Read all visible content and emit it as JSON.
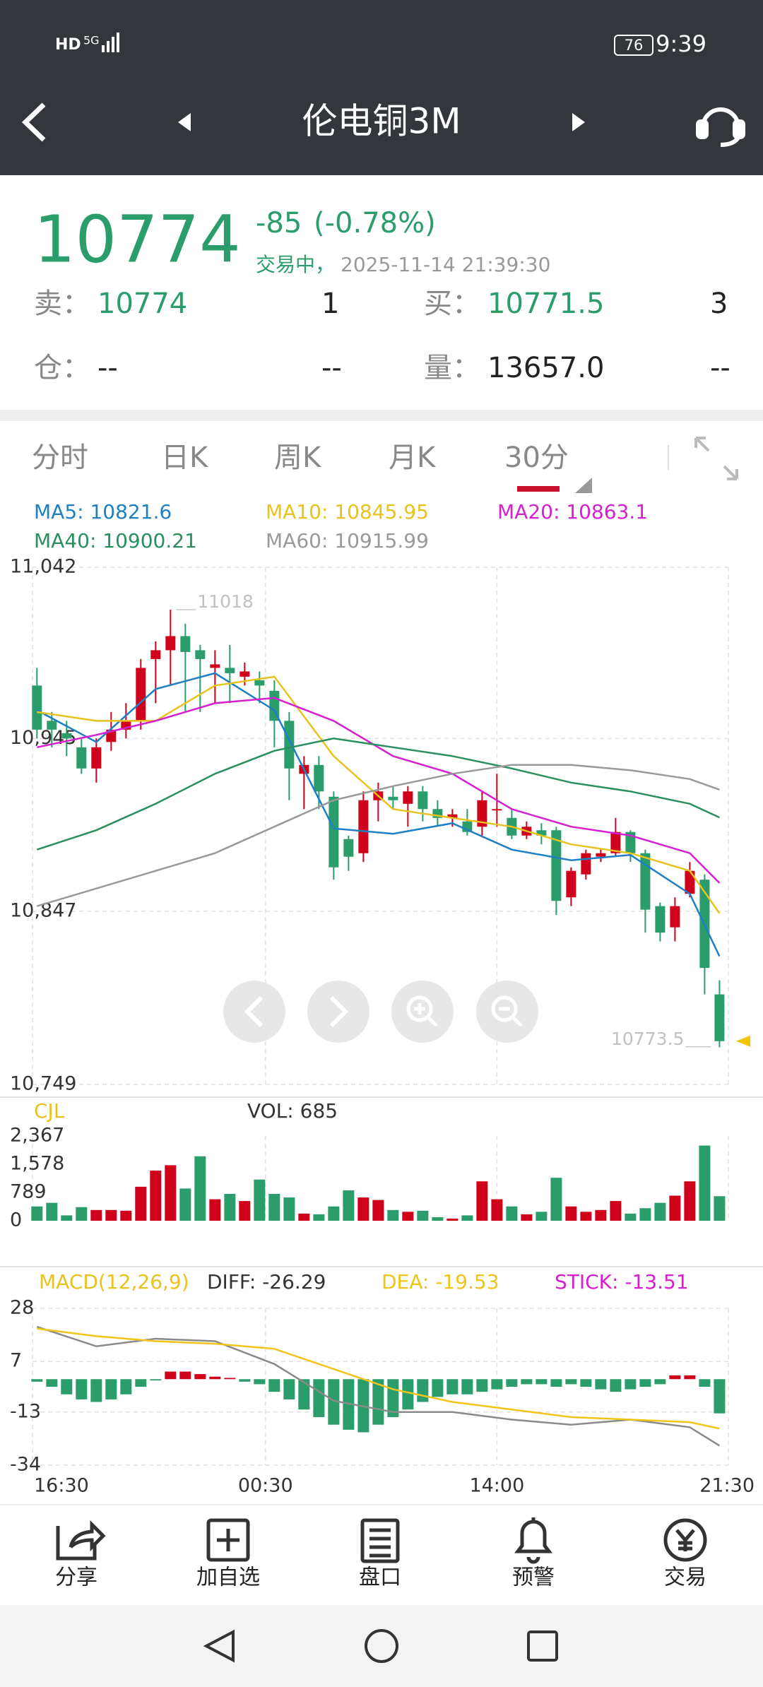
{
  "status_bar": {
    "hd": "HD",
    "network": "5G",
    "battery": "76",
    "time": "9:39"
  },
  "header": {
    "title": "伦电铜3M"
  },
  "quote": {
    "price": "10774",
    "change": "-85",
    "change_pct": "(-0.78%)",
    "status": "交易中，",
    "time": "2025-11-14 21:39:30",
    "rows": [
      [
        "卖：",
        "10774",
        "1",
        "买：",
        "10771.5",
        "3"
      ],
      [
        "仓：",
        "--",
        "--",
        "量：",
        "13657.0",
        "--"
      ]
    ]
  },
  "tabs": [
    "分时",
    "日K",
    "周K",
    "月K",
    "30分"
  ],
  "chart_data": [
    {
      "type": "candlestick",
      "up_color": "#d0021b",
      "down_color": "#2a9d6a",
      "open": [
        10975,
        10955,
        10948,
        10940,
        10928,
        10943,
        10950,
        10955,
        10990,
        10995,
        11003,
        10995,
        10985,
        10985,
        10980,
        10978,
        10972,
        10955,
        10925,
        10930,
        10912,
        10888,
        10880,
        10910,
        10912,
        10908,
        10915,
        10905,
        10900,
        10898,
        10895,
        10905,
        10900,
        10890,
        10893,
        10893,
        10855,
        10868,
        10878,
        10880,
        10892,
        10880,
        10850,
        10838,
        10857,
        10865,
        10800
      ],
      "high": [
        10985,
        10960,
        10955,
        10945,
        10945,
        10960,
        10965,
        10990,
        11000,
        11018,
        11010,
        10998,
        10995,
        10998,
        10988,
        10983,
        10978,
        10960,
        10935,
        10935,
        10915,
        10890,
        10915,
        10920,
        10918,
        10918,
        10918,
        10910,
        10905,
        10905,
        10915,
        10925,
        10905,
        10898,
        10897,
        10895,
        10872,
        10882,
        10882,
        10900,
        10893,
        10882,
        10852,
        10855,
        10875,
        10868,
        10808
      ],
      "low": [
        10945,
        10940,
        10935,
        10925,
        10920,
        10938,
        10945,
        10950,
        10965,
        10975,
        10960,
        10960,
        10965,
        10965,
        10975,
        10965,
        10940,
        10910,
        10905,
        10905,
        10865,
        10870,
        10875,
        10898,
        10905,
        10895,
        10898,
        10895,
        10895,
        10890,
        10890,
        10895,
        10888,
        10888,
        10885,
        10845,
        10850,
        10865,
        10875,
        10878,
        10875,
        10835,
        10830,
        10830,
        10855,
        10800,
        10770
      ],
      "close": [
        10950,
        10950,
        10945,
        10928,
        10940,
        10950,
        10955,
        10985,
        10995,
        11003,
        10994,
        10990,
        10987,
        10982,
        10983,
        10975,
        10955,
        10928,
        10930,
        10915,
        10872,
        10878,
        10910,
        10915,
        10910,
        10915,
        10905,
        10900,
        10902,
        10892,
        10910,
        10905,
        10890,
        10895,
        10890,
        10853,
        10870,
        10880,
        10880,
        10892,
        10880,
        10848,
        10835,
        10850,
        10870,
        10815,
        10773.5
      ],
      "series": [
        {
          "name": "MA5: 10821.6",
          "color": "#1f7fc4",
          "x": [
            0,
            4,
            8,
            12,
            16,
            20,
            24,
            28,
            32,
            36,
            40,
            44,
            46
          ],
          "values": [
            10961,
            10943,
            10973,
            10982,
            10961,
            10894,
            10891,
            10897,
            10882,
            10876,
            10879,
            10857,
            10821.6
          ]
        },
        {
          "name": "MA10: 10845.95",
          "color": "#e8c21e",
          "x": [
            0,
            4,
            8,
            12,
            16,
            20,
            24,
            28,
            32,
            36,
            40,
            44,
            46
          ],
          "values": [
            10960,
            10955,
            10955,
            10975,
            10980,
            10935,
            10905,
            10900,
            10895,
            10885,
            10880,
            10870,
            10845.95
          ]
        },
        {
          "name": "MA20: 10863.1",
          "color": "#d61fd0",
          "x": [
            0,
            4,
            8,
            12,
            16,
            20,
            24,
            28,
            32,
            36,
            40,
            44,
            46
          ],
          "values": [
            10940,
            10947,
            10955,
            10965,
            10968,
            10955,
            10935,
            10925,
            10905,
            10895,
            10890,
            10880,
            10863.1
          ]
        },
        {
          "name": "MA40: 10900.21",
          "color": "#2a8f5e",
          "x": [
            0,
            4,
            8,
            12,
            16,
            20,
            24,
            28,
            32,
            36,
            40,
            44,
            46
          ],
          "values": [
            10882,
            10893,
            10908,
            10925,
            10938,
            10945,
            10940,
            10935,
            10928,
            10920,
            10915,
            10908,
            10900.21
          ]
        },
        {
          "name": "MA60: 10915.99",
          "color": "#999999",
          "x": [
            0,
            4,
            8,
            12,
            16,
            20,
            24,
            28,
            32,
            36,
            40,
            44,
            46
          ],
          "values": [
            10850,
            10860,
            10870,
            10880,
            10895,
            10910,
            10918,
            10925,
            10930,
            10930,
            10927,
            10922,
            10915.99
          ]
        }
      ],
      "xlim": [
        -0.3,
        46.6
      ],
      "ylim": [
        10749,
        11042
      ],
      "yticks": [
        {
          "value": 10749,
          "label": "10,749"
        },
        {
          "value": 10847,
          "label": "10,847"
        },
        {
          "value": 10945,
          "label": "10,945"
        },
        {
          "value": 11042,
          "label": "11,042"
        }
      ],
      "xticks": [
        {
          "value": -0.3,
          "label": "16:30"
        },
        {
          "value": 15.4,
          "label": "00:30"
        },
        {
          "value": 31,
          "label": "14:00"
        },
        {
          "value": 46.6,
          "label": "21:30"
        }
      ],
      "grid": true,
      "max_label": "11018",
      "last_label": "10773.5"
    },
    {
      "type": "bar",
      "title": "CJL",
      "label": "VOL: 685",
      "values": [
        400,
        500,
        150,
        380,
        300,
        300,
        280,
        950,
        1400,
        1550,
        900,
        1800,
        600,
        750,
        550,
        1150,
        750,
        650,
        200,
        180,
        400,
        850,
        650,
        580,
        300,
        250,
        280,
        100,
        60,
        150,
        1100,
        600,
        400,
        180,
        250,
        1200,
        400,
        250,
        300,
        550,
        200,
        350,
        500,
        700,
        1100,
        2100,
        685
      ],
      "ylim": [
        0,
        2367
      ],
      "yticks": [
        0,
        789,
        {
          "value": 1578,
          "label": "1,578"
        },
        {
          "value": 2367,
          "label": "2,367"
        }
      ]
    },
    {
      "type": "macd",
      "title": "MACD(12,26,9)",
      "label": "STICK: -13.51",
      "up_color": "#d0021b",
      "down_color": "#2a9d6a",
      "values": [
        -1,
        -3,
        -6,
        -8,
        -9,
        -8,
        -6,
        -3,
        -0.5,
        3,
        3,
        2,
        1,
        0.5,
        -1,
        -2,
        -5,
        -8,
        -12,
        -15,
        -18,
        -20,
        -21,
        -18,
        -15,
        -12,
        -9,
        -7,
        -6,
        -6,
        -5,
        -4,
        -3,
        -2,
        -2,
        -3,
        -2,
        -3,
        -4,
        -5,
        -4,
        -3,
        -2,
        1.5,
        1.5,
        -3,
        -13.51
      ],
      "series": [
        {
          "name": "DIFF: -26.29",
          "color": "#8a8a8a",
          "x": [
            0,
            4,
            8,
            12,
            16,
            20,
            24,
            28,
            32,
            36,
            40,
            44,
            46
          ],
          "values": [
            20.7,
            13,
            16,
            15,
            6,
            -8.5,
            -13,
            -13,
            -16,
            -18,
            -16,
            -19,
            -26.29
          ]
        },
        {
          "name": "DEA: -19.53",
          "color": "#f0c419",
          "x": [
            0,
            4,
            8,
            12,
            16,
            20,
            24,
            28,
            32,
            36,
            40,
            44,
            46
          ],
          "values": [
            20,
            17,
            15,
            14,
            12,
            4,
            -4,
            -9,
            -12,
            -15,
            -16,
            -17,
            -19.53
          ]
        }
      ],
      "ylim": [
        -34,
        28
      ],
      "yticks": [
        -34,
        -13,
        7,
        28
      ]
    }
  ],
  "toolbar": [
    "分享",
    "加自选",
    "盘口",
    "预警",
    "交易"
  ]
}
